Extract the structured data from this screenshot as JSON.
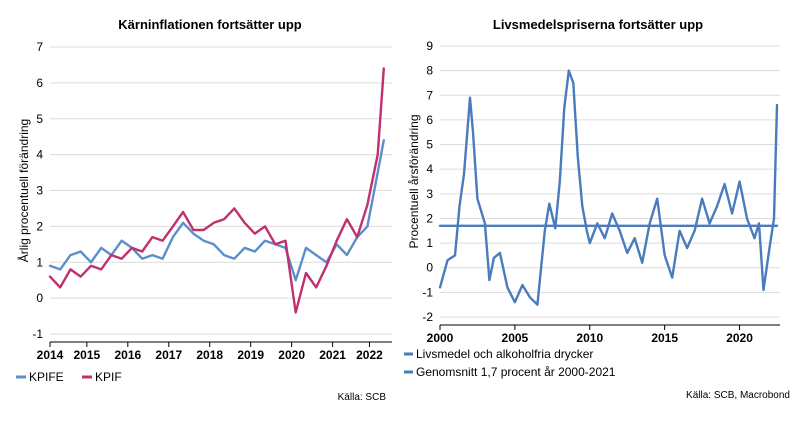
{
  "chart_data": [
    {
      "type": "line",
      "title": "Kärninflationen fortsätter upp",
      "ylabel": "Årlig procentuell förändring",
      "xlabel": "",
      "ylim": [
        -1,
        7
      ],
      "yticks": [
        "-1",
        "0",
        "1",
        "2",
        "3",
        "4",
        "5",
        "6",
        "7"
      ],
      "xticks": [
        "2014",
        "2015",
        "2016",
        "2017",
        "2018",
        "2019",
        "2020",
        "2021",
        "2022"
      ],
      "grid": "horizontal",
      "legend": "bottom",
      "source": "Källa: SCB",
      "series": [
        {
          "name": "KPIFE",
          "color": "#5b8fcb",
          "x": [
            2014.0,
            2014.25,
            2014.5,
            2014.75,
            2015.0,
            2015.25,
            2015.5,
            2015.75,
            2016.0,
            2016.25,
            2016.5,
            2016.75,
            2017.0,
            2017.25,
            2017.5,
            2017.75,
            2018.0,
            2018.25,
            2018.5,
            2018.75,
            2019.0,
            2019.25,
            2019.5,
            2019.75,
            2020.0,
            2020.25,
            2020.5,
            2020.75,
            2021.0,
            2021.25,
            2021.5,
            2021.75,
            2022.0,
            2022.15
          ],
          "values": [
            0.9,
            0.8,
            1.2,
            1.3,
            1.0,
            1.4,
            1.2,
            1.6,
            1.4,
            1.1,
            1.2,
            1.1,
            1.7,
            2.1,
            1.8,
            1.6,
            1.5,
            1.2,
            1.1,
            1.4,
            1.3,
            1.6,
            1.5,
            1.4,
            0.5,
            1.4,
            1.2,
            1.0,
            1.5,
            1.2,
            1.7,
            2.0,
            3.5,
            4.4
          ]
        },
        {
          "name": "KPIF",
          "color": "#c0306e",
          "x": [
            2014.0,
            2014.25,
            2014.5,
            2014.75,
            2015.0,
            2015.25,
            2015.5,
            2015.75,
            2016.0,
            2016.25,
            2016.5,
            2016.75,
            2017.0,
            2017.25,
            2017.5,
            2017.75,
            2018.0,
            2018.25,
            2018.5,
            2018.75,
            2019.0,
            2019.25,
            2019.5,
            2019.75,
            2020.0,
            2020.25,
            2020.5,
            2020.75,
            2021.0,
            2021.25,
            2021.5,
            2021.75,
            2022.0,
            2022.15
          ],
          "values": [
            0.6,
            0.3,
            0.8,
            0.6,
            0.9,
            0.8,
            1.2,
            1.1,
            1.4,
            1.3,
            1.7,
            1.6,
            2.0,
            2.4,
            1.9,
            1.9,
            2.1,
            2.2,
            2.5,
            2.1,
            1.8,
            2.0,
            1.5,
            1.6,
            -0.4,
            0.7,
            0.3,
            0.9,
            1.6,
            2.2,
            1.7,
            2.6,
            4.0,
            6.4
          ]
        }
      ]
    },
    {
      "type": "line",
      "title": "Livsmedelspriserna fortsätter upp",
      "ylabel": "Procentuell årsförändring",
      "xlabel": "",
      "ylim": [
        -2,
        9
      ],
      "yticks": [
        "-2",
        "-1",
        "0",
        "1",
        "2",
        "3",
        "4",
        "5",
        "6",
        "7",
        "8",
        "9"
      ],
      "xticks": [
        "2000",
        "2005",
        "2010",
        "2015",
        "2020"
      ],
      "grid": "horizontal",
      "legend": "bottom",
      "source": "Källa: SCB, Macrobond",
      "series": [
        {
          "name": "Livsmedel och alkoholfria drycker",
          "color": "#4a7bbd",
          "x": [
            2000.0,
            2000.5,
            2001.0,
            2001.3,
            2001.6,
            2002.0,
            2002.2,
            2002.5,
            2003.0,
            2003.3,
            2003.6,
            2004.0,
            2004.5,
            2005.0,
            2005.5,
            2006.0,
            2006.5,
            2007.0,
            2007.3,
            2007.7,
            2008.0,
            2008.3,
            2008.6,
            2008.9,
            2009.2,
            2009.5,
            2009.8,
            2010.0,
            2010.5,
            2011.0,
            2011.5,
            2012.0,
            2012.5,
            2013.0,
            2013.5,
            2014.0,
            2014.5,
            2015.0,
            2015.5,
            2016.0,
            2016.5,
            2017.0,
            2017.5,
            2018.0,
            2018.5,
            2019.0,
            2019.5,
            2020.0,
            2020.5,
            2021.0,
            2021.3,
            2021.6,
            2022.0,
            2022.3,
            2022.5
          ],
          "values": [
            -0.8,
            0.3,
            0.5,
            2.5,
            3.8,
            6.9,
            5.5,
            2.8,
            1.8,
            -0.5,
            0.4,
            0.6,
            -0.8,
            -1.4,
            -0.7,
            -1.2,
            -1.5,
            1.5,
            2.6,
            1.6,
            3.5,
            6.5,
            8.0,
            7.5,
            4.5,
            2.5,
            1.5,
            1.0,
            1.8,
            1.2,
            2.2,
            1.5,
            0.6,
            1.2,
            0.2,
            1.8,
            2.8,
            0.5,
            -0.4,
            1.5,
            0.8,
            1.5,
            2.8,
            1.8,
            2.5,
            3.4,
            2.2,
            3.5,
            2.0,
            1.2,
            1.8,
            -0.9,
            0.8,
            2.0,
            6.6
          ]
        },
        {
          "name": "Genomsnitt 1,7 procent år 2000-2021",
          "color": "#4a7bbd",
          "x": [
            2000.0,
            2022.5
          ],
          "values": [
            1.7,
            1.7
          ]
        }
      ]
    }
  ]
}
